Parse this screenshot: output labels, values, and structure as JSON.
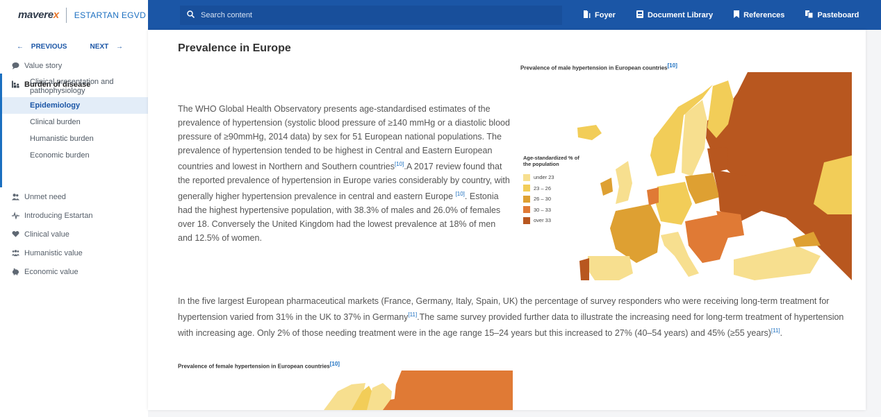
{
  "brand": {
    "logo": "maverex",
    "product": "ESTARTAN EGVD"
  },
  "pager": {
    "previous": "PREVIOUS",
    "next": "NEXT"
  },
  "nav": {
    "top_items": [
      {
        "label": "Value story",
        "icon": "chat-bubble-icon"
      },
      {
        "label": "Burden of disease",
        "icon": "chart-people-icon"
      }
    ],
    "sub_items": [
      "Clinical presentation and pathophysiology",
      "Epidemiology",
      "Clinical burden",
      "Humanistic burden",
      "Economic burden"
    ],
    "current_sub": "Epidemiology",
    "bottom_items": [
      {
        "label": "Unmet need",
        "icon": "people-icon"
      },
      {
        "label": "Introducing Estartan",
        "icon": "pulse-icon"
      },
      {
        "label": "Clinical value",
        "icon": "heart-icon"
      },
      {
        "label": "Humanistic value",
        "icon": "group-icon"
      },
      {
        "label": "Economic value",
        "icon": "piggy-bank-icon"
      }
    ]
  },
  "topbar": {
    "search_placeholder": "Search content",
    "links": [
      "Foyer",
      "Document Library",
      "References",
      "Pasteboard"
    ]
  },
  "content": {
    "title": "Prevalence in Europe",
    "para1": {
      "a": "The WHO Global Health Observatory presents age-standardised estimates of the prevalence of hypertension (systolic blood pressure of ≥140 mmHg or a diastolic blood pressure of ≥90mmHg, 2014 data)  by sex for 51 European national populations. The prevalence of hypertension tended to be highest in Central and Eastern European countries and lowest in Northern and Southern countries",
      "ref1": "[10]",
      "b": ".A 2017 review found that the reported prevalence of hypertension in Europe varies considerably by country, with generally higher hypertension prevalence in central and eastern Europe ",
      "ref2": "[10]",
      "c": ". Estonia had the highest hypertensive population, with 38.3% of males and 26.0% of females over 18. Conversely the United Kingdom had the lowest prevalence at 18% of men and 12.5% of women."
    },
    "para2": {
      "a": "In the five largest European pharmaceutical markets (France, Germany, Italy, Spain, UK) the percentage of survey responders who were receiving long-term treatment for hypertension varied from 31% in the UK to 37% in Germany",
      "ref1": "[11]",
      "b": ".The same survey provided further data to illustrate the increasing need for long-term treatment of hypertension with increasing age. Only 2% of those needing treatment were in the age range 15–24 years but this increased to 27% (40–54 years) and 45% (≥55 years)",
      "ref2": "[11]",
      "c": "."
    },
    "male_map": {
      "title": "Prevalence of male hypertension in European countries",
      "ref": "[10]",
      "legend_title": "Age-standardized % of the population",
      "legend": [
        {
          "label": "under 23",
          "color": "#f7df8f"
        },
        {
          "label": "23 – 26",
          "color": "#f2cd58"
        },
        {
          "label": "26 – 30",
          "color": "#dea032"
        },
        {
          "label": "30 – 33",
          "color": "#e07a35"
        },
        {
          "label": "over 33",
          "color": "#b8571f"
        }
      ]
    },
    "female_map": {
      "title": "Prevalence of female hypertension in European countries",
      "ref": "[10]"
    }
  }
}
